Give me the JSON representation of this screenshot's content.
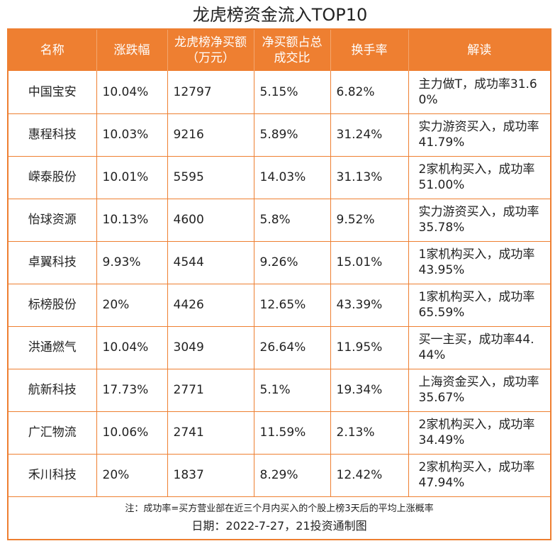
{
  "title": "龙虎榜资金流入TOP10",
  "accent_color": "#ee7f31",
  "columns": [
    "名称",
    "涨跌幅",
    "龙虎榜净买额（万元）",
    "净买额占总成交比",
    "换手率",
    "解读"
  ],
  "rows": [
    {
      "name": "中国宝安",
      "change": "10.04%",
      "net_buy": "12797",
      "ratio": "5.15%",
      "turnover": "6.82%",
      "interp": "主力做T，成功率31.60%"
    },
    {
      "name": "惠程科技",
      "change": "10.03%",
      "net_buy": "9216",
      "ratio": "5.89%",
      "turnover": "31.24%",
      "interp": "实力游资买入，成功率41.79%"
    },
    {
      "name": "嵘泰股份",
      "change": "10.01%",
      "net_buy": "5595",
      "ratio": "14.03%",
      "turnover": "31.13%",
      "interp": "2家机构买入，成功率51.00%"
    },
    {
      "name": "怡球资源",
      "change": "10.13%",
      "net_buy": "4600",
      "ratio": "5.8%",
      "turnover": "9.52%",
      "interp": "实力游资买入，成功率35.78%"
    },
    {
      "name": "卓翼科技",
      "change": "9.93%",
      "net_buy": "4544",
      "ratio": "9.26%",
      "turnover": "15.01%",
      "interp": "1家机构买入，成功率43.95%"
    },
    {
      "name": "标榜股份",
      "change": "20%",
      "net_buy": "4426",
      "ratio": "12.65%",
      "turnover": "43.39%",
      "interp": "1家机构买入，成功率65.59%"
    },
    {
      "name": "洪通燃气",
      "change": "10.04%",
      "net_buy": "3049",
      "ratio": "26.64%",
      "turnover": "11.95%",
      "interp": "买一主买，成功率44.44%"
    },
    {
      "name": "航新科技",
      "change": "17.73%",
      "net_buy": "2771",
      "ratio": "5.1%",
      "turnover": "19.34%",
      "interp": "上海资金买入，成功率35.67%"
    },
    {
      "name": "广汇物流",
      "change": "10.06%",
      "net_buy": "2741",
      "ratio": "11.59%",
      "turnover": "2.13%",
      "interp": "2家机构买入，成功率34.49%"
    },
    {
      "name": "禾川科技",
      "change": "20%",
      "net_buy": "1837",
      "ratio": "8.29%",
      "turnover": "12.42%",
      "interp": "2家机构买入，成功率47.94%"
    }
  ],
  "note": "注：成功率=买方营业部在近三个月内买入的个股上榜3天后的平均上涨概率",
  "date_line": "日期：2022-7-27，21投资通制图"
}
